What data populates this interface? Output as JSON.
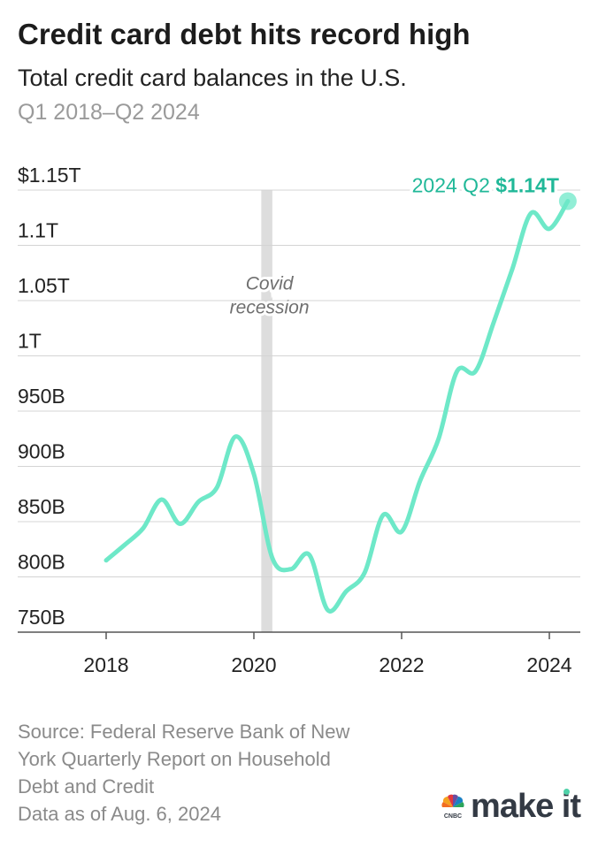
{
  "header": {
    "title": "Credit card debt hits record high",
    "subtitle": "Total credit card balances in the U.S.",
    "date_range": "Q1 2018–Q2 2024"
  },
  "chart_data": {
    "type": "line",
    "title": "Credit card debt hits record high",
    "subtitle": "Total credit card balances in the U.S.",
    "units": "USD",
    "x_ticks": [
      "2018",
      "2020",
      "2022",
      "2024"
    ],
    "y_ticks": [
      {
        "value": 750,
        "label": "750B"
      },
      {
        "value": 800,
        "label": "800B"
      },
      {
        "value": 850,
        "label": "850B"
      },
      {
        "value": 900,
        "label": "900B"
      },
      {
        "value": 950,
        "label": "950B"
      },
      {
        "value": 1000,
        "label": "1T"
      },
      {
        "value": 1050,
        "label": "1.05T"
      },
      {
        "value": 1100,
        "label": "1.1T"
      },
      {
        "value": 1150,
        "label": "$1.15T"
      }
    ],
    "ylim": [
      750,
      1150
    ],
    "series": [
      {
        "name": "Total credit card balances (billions USD)",
        "color": "#6ee8c8",
        "x": [
          2018.0,
          2018.25,
          2018.5,
          2018.75,
          2019.0,
          2019.25,
          2019.5,
          2019.75,
          2020.0,
          2020.25,
          2020.5,
          2020.75,
          2021.0,
          2021.25,
          2021.5,
          2021.75,
          2022.0,
          2022.25,
          2022.5,
          2022.75,
          2023.0,
          2023.25,
          2023.5,
          2023.75,
          2024.0,
          2024.25
        ],
        "values": [
          815,
          829,
          844,
          870,
          848,
          868,
          881,
          927,
          893,
          817,
          807,
          820,
          770,
          787,
          804,
          856,
          841,
          887,
          925,
          986,
          986,
          1031,
          1079,
          1129,
          1115,
          1140
        ]
      }
    ],
    "shaded_regions": [
      {
        "label": "Covid recession",
        "label_line1": "Covid",
        "label_line2": "recession",
        "x_start": 2020.1,
        "x_end": 2020.25
      }
    ],
    "annotation": {
      "label_prefix": "2024 Q2",
      "label_value": "$1.14T",
      "x": 2024.25,
      "y": 1140
    }
  },
  "footer": {
    "source_lines": [
      "Source: Federal Reserve Bank of New",
      "York Quarterly Report on Household",
      "Debt and Credit",
      "Data as of Aug. 6, 2024"
    ],
    "logo_small": "CNBC",
    "logo_main": "make it"
  },
  "colors": {
    "line": "#6ee8c8",
    "accent": "#20b898",
    "recession": "#dddddd",
    "grid": "#d4d4d4",
    "axis": "#555555",
    "text": "#1a1a1a",
    "muted": "#9a9a9a"
  }
}
